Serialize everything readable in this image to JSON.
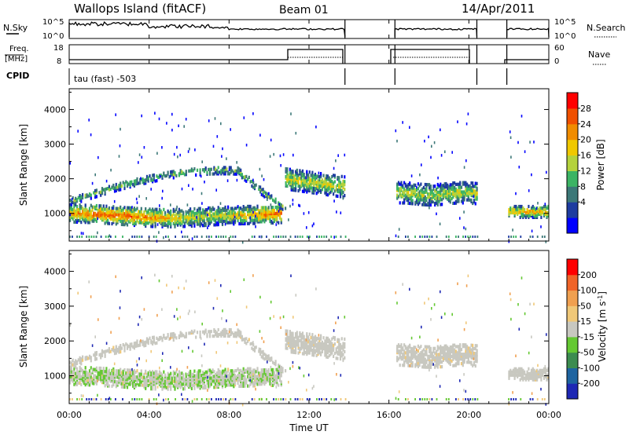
{
  "header": {
    "station": "Wallops Island (fitACF)",
    "beam": "Beam 01",
    "date": "14/Apr/2011"
  },
  "status_panels": {
    "nsky_label": "N.Sky",
    "nsky_ticks": [
      "10^5",
      "10^0"
    ],
    "nsearch_label": "N.Search",
    "nsearch_ticks": [
      "10^5",
      "10^0"
    ],
    "freq_label_top": "Freq.",
    "freq_label_bottom": "[MHz]",
    "freq_ticks": [
      "18",
      "8"
    ],
    "nave_label": "Nave",
    "nave_ticks": [
      "60",
      "0"
    ],
    "cpid_label": "CPID",
    "cpid_text": "tau (fast) -503"
  },
  "colors": {
    "power_scale": [
      "#0000ff",
      "#1e3ca0",
      "#3c7878",
      "#3cb464",
      "#b4d23c",
      "#f0c800",
      "#f08c00",
      "#f05000",
      "#ff0000"
    ],
    "velocity_scale": [
      "#1e28b4",
      "#1e64a0",
      "#3c8c50",
      "#64c832",
      "#c8c8c0",
      "#f0c878",
      "#f0a050",
      "#f06428",
      "#ff0000"
    ]
  },
  "chart_data": [
    {
      "type": "heatmap",
      "name": "power",
      "ylabel": "Slant Range [km]",
      "yticks": [
        "4000",
        "3000",
        "2000",
        "1000"
      ],
      "ylim": [
        200,
        4600
      ],
      "colorbar_label": "Power [dB]",
      "colorbar_ticks": [
        "28",
        "24",
        "20",
        "16",
        "12",
        "8",
        "4"
      ],
      "colorbar_range": [
        0,
        32
      ],
      "xticks": [
        "00:00",
        "04:00",
        "08:00",
        "12:00",
        "16:00",
        "20:00",
        "00:00"
      ],
      "xlim_hours": [
        0,
        24
      ],
      "data_gaps_hours": [
        [
          13.8,
          16.3
        ],
        [
          20.4,
          21.9
        ]
      ]
    },
    {
      "type": "heatmap",
      "name": "velocity",
      "ylabel": "Slant Range [km]",
      "yticks": [
        "4000",
        "3000",
        "2000",
        "1000"
      ],
      "ylim": [
        200,
        4600
      ],
      "colorbar_label": "Velocity [m s-1]",
      "colorbar_ticks": [
        "200",
        "100",
        "50",
        "15",
        "-15",
        "-50",
        "-100",
        "-200"
      ],
      "xlabel": "Time UT",
      "xticks": [
        "00:00",
        "04:00",
        "08:00",
        "12:00",
        "16:00",
        "20:00",
        "00:00"
      ],
      "xlim_hours": [
        0,
        24
      ],
      "data_gaps_hours": [
        [
          13.8,
          16.3
        ],
        [
          20.4,
          21.9
        ]
      ]
    }
  ]
}
